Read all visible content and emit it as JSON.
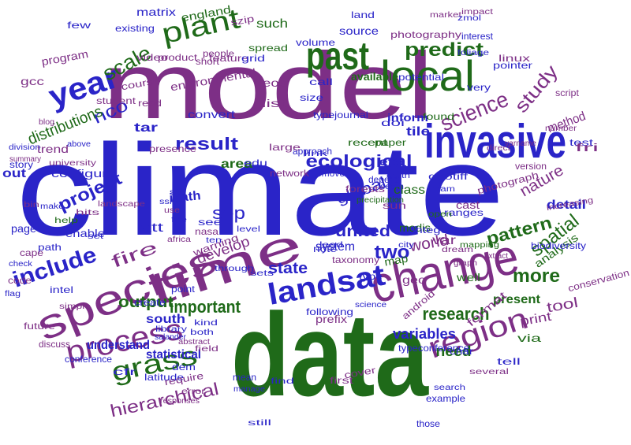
{
  "colors": {
    "blue": "#2a24c8",
    "purple": "#7d2f86",
    "green": "#1f6a19"
  },
  "words": [
    {
      "text": "climate",
      "color": "blue",
      "weight": "light"
    },
    {
      "text": "data",
      "color": "green",
      "weight": "bold"
    },
    {
      "text": "model",
      "color": "purple",
      "weight": "light"
    },
    {
      "text": "invasive",
      "color": "blue",
      "weight": "bold"
    },
    {
      "text": "species",
      "color": "purple",
      "weight": "light"
    },
    {
      "text": "time",
      "color": "purple",
      "weight": "light"
    },
    {
      "text": "change",
      "color": "purple",
      "weight": "light"
    },
    {
      "text": "local",
      "color": "green",
      "weight": "light"
    },
    {
      "text": "past",
      "color": "green",
      "weight": "bold"
    },
    {
      "text": "year",
      "color": "blue",
      "weight": "bold"
    },
    {
      "text": "plant",
      "color": "green",
      "weight": "light"
    },
    {
      "text": "landsat",
      "color": "blue",
      "weight": "bold"
    },
    {
      "text": "process",
      "color": "purple",
      "weight": "light"
    },
    {
      "text": "region",
      "color": "purple",
      "weight": "light"
    },
    {
      "text": "grass",
      "color": "green",
      "weight": "light"
    },
    {
      "text": "ecological",
      "color": "blue",
      "weight": "bold"
    },
    {
      "text": "result",
      "color": "blue",
      "weight": "bold"
    },
    {
      "text": "include",
      "color": "blue",
      "weight": "bold"
    },
    {
      "text": "science",
      "color": "purple",
      "weight": "light"
    },
    {
      "text": "predict",
      "color": "green",
      "weight": "bold"
    },
    {
      "text": "scale",
      "color": "green",
      "weight": "light"
    },
    {
      "text": "nco",
      "color": "blue",
      "weight": "light"
    },
    {
      "text": "study",
      "color": "purple",
      "weight": "light"
    },
    {
      "text": "project",
      "color": "blue",
      "weight": "bold"
    },
    {
      "text": "distributions",
      "color": "green",
      "weight": "light"
    },
    {
      "text": "spatial",
      "color": "green",
      "weight": "light"
    },
    {
      "text": "pattern",
      "color": "green",
      "weight": "bold"
    },
    {
      "text": "more",
      "color": "green",
      "weight": "bold"
    },
    {
      "text": "research",
      "color": "green",
      "weight": "bold"
    },
    {
      "text": "output",
      "color": "green",
      "weight": "bold"
    },
    {
      "text": "important",
      "color": "green",
      "weight": "bold"
    },
    {
      "text": "state",
      "color": "blue",
      "weight": "bold"
    },
    {
      "text": "two",
      "color": "blue",
      "weight": "bold"
    },
    {
      "text": "world",
      "color": "purple",
      "weight": "light"
    },
    {
      "text": "global",
      "color": "blue",
      "weight": "light"
    },
    {
      "text": "united",
      "color": "blue",
      "weight": "bold"
    },
    {
      "text": "fire",
      "color": "purple",
      "weight": "light"
    },
    {
      "text": "develop",
      "color": "purple",
      "weight": "light"
    },
    {
      "text": "statistical",
      "color": "blue",
      "weight": "bold"
    },
    {
      "text": "hierarchical",
      "color": "purple",
      "weight": "light"
    },
    {
      "text": "south",
      "color": "blue",
      "weight": "bold"
    },
    {
      "text": "understand",
      "color": "blue",
      "weight": "bold"
    },
    {
      "text": "variables",
      "color": "blue",
      "weight": "bold"
    },
    {
      "text": "need",
      "color": "green",
      "weight": "bold"
    },
    {
      "text": "present",
      "color": "green",
      "weight": "bold"
    },
    {
      "text": "tool",
      "color": "purple",
      "weight": "light"
    },
    {
      "text": "print",
      "color": "purple",
      "weight": "light"
    },
    {
      "text": "nature",
      "color": "purple",
      "weight": "light"
    },
    {
      "text": "detail",
      "color": "blue",
      "weight": "bold"
    },
    {
      "text": "analysis",
      "color": "green",
      "weight": "light"
    },
    {
      "text": "conservation",
      "color": "purple",
      "weight": "light"
    },
    {
      "text": "system",
      "color": "blue",
      "weight": "light"
    },
    {
      "text": "sep",
      "color": "blue",
      "weight": "light"
    },
    {
      "text": "att",
      "color": "blue",
      "weight": "light"
    },
    {
      "text": "area",
      "color": "green",
      "weight": "bold"
    },
    {
      "text": "class",
      "color": "green",
      "weight": "light"
    },
    {
      "text": "configure",
      "color": "blue",
      "weight": "light"
    },
    {
      "text": "trend",
      "color": "purple",
      "weight": "light"
    },
    {
      "text": "out",
      "color": "blue",
      "weight": "bold"
    },
    {
      "text": "tar",
      "color": "blue",
      "weight": "bold"
    },
    {
      "text": "ipath",
      "color": "blue",
      "weight": "bold"
    },
    {
      "text": "page",
      "color": "blue",
      "weight": "light"
    },
    {
      "text": "enable",
      "color": "blue",
      "weight": "light"
    },
    {
      "text": "prefix",
      "color": "purple",
      "weight": "light"
    },
    {
      "text": "presence",
      "color": "purple",
      "weight": "light"
    },
    {
      "text": "convert",
      "color": "blue",
      "weight": "light"
    },
    {
      "text": "environmental",
      "color": "purple",
      "weight": "light"
    },
    {
      "text": "such",
      "color": "green",
      "weight": "light"
    },
    {
      "text": "england",
      "color": "green",
      "weight": "light"
    },
    {
      "text": "matrix",
      "color": "blue",
      "weight": "light"
    },
    {
      "text": "available",
      "color": "green",
      "weight": "bold"
    },
    {
      "text": "potential",
      "color": "blue",
      "weight": "light"
    },
    {
      "text": "pointer",
      "color": "blue",
      "weight": "light"
    },
    {
      "text": "inform",
      "color": "blue",
      "weight": "bold"
    },
    {
      "text": "tile",
      "color": "blue",
      "weight": "bold"
    },
    {
      "text": "method",
      "color": "purple",
      "weight": "light"
    },
    {
      "text": "source",
      "color": "blue",
      "weight": "light"
    },
    {
      "text": "photography",
      "color": "purple",
      "weight": "light"
    },
    {
      "text": "photograph",
      "color": "purple",
      "weight": "light"
    },
    {
      "text": "geotiff",
      "color": "blue",
      "weight": "light"
    },
    {
      "text": "cast",
      "color": "purple",
      "weight": "light"
    },
    {
      "text": "ranges",
      "color": "blue",
      "weight": "light"
    },
    {
      "text": "modis",
      "color": "green",
      "weight": "light"
    },
    {
      "text": "warning",
      "color": "purple",
      "weight": "light"
    },
    {
      "text": "nasa",
      "color": "purple",
      "weight": "light"
    },
    {
      "text": "spread",
      "color": "green",
      "weight": "light"
    },
    {
      "text": "course",
      "color": "purple",
      "weight": "light"
    },
    {
      "text": "recent",
      "color": "green",
      "weight": "light"
    },
    {
      "text": "paper",
      "color": "green",
      "weight": "light"
    },
    {
      "text": "gcc",
      "color": "purple",
      "weight": "light"
    },
    {
      "text": "program",
      "color": "purple",
      "weight": "light"
    },
    {
      "text": "product",
      "color": "purple",
      "weight": "light"
    },
    {
      "text": "video",
      "color": "purple",
      "weight": "light"
    },
    {
      "text": "eos",
      "color": "purple",
      "weight": "light"
    },
    {
      "text": "feature",
      "color": "purple",
      "weight": "light"
    },
    {
      "text": "grid",
      "color": "blue",
      "weight": "light"
    },
    {
      "text": "linux",
      "color": "purple",
      "weight": "light"
    },
    {
      "text": "interest",
      "color": "blue",
      "weight": "light"
    },
    {
      "text": "market",
      "color": "purple",
      "weight": "light"
    },
    {
      "text": "land",
      "color": "blue",
      "weight": "light"
    },
    {
      "text": "volume",
      "color": "blue",
      "weight": "light"
    },
    {
      "text": "szip",
      "color": "purple",
      "weight": "light"
    },
    {
      "text": "list",
      "color": "purple",
      "weight": "light"
    },
    {
      "text": "size",
      "color": "blue",
      "weight": "light"
    },
    {
      "text": "doi",
      "color": "blue",
      "weight": "light"
    },
    {
      "text": "typejournal",
      "color": "blue",
      "weight": "light"
    },
    {
      "text": "typeconference",
      "color": "blue",
      "weight": "light"
    },
    {
      "text": "integer",
      "color": "blue",
      "weight": "light"
    },
    {
      "text": "format",
      "color": "purple",
      "weight": "light"
    },
    {
      "text": "var",
      "color": "purple",
      "weight": "light"
    },
    {
      "text": "geo",
      "color": "purple",
      "weight": "light"
    },
    {
      "text": "android",
      "color": "purple",
      "weight": "light"
    },
    {
      "text": "map",
      "color": "green",
      "weight": "light"
    },
    {
      "text": "taxonomy",
      "color": "purple",
      "weight": "light"
    },
    {
      "text": "intel",
      "color": "blue",
      "weight": "light"
    },
    {
      "text": "path",
      "color": "blue",
      "weight": "light"
    },
    {
      "text": "note",
      "color": "blue",
      "weight": "light"
    },
    {
      "text": "create",
      "color": "blue",
      "weight": "light"
    },
    {
      "text": "point",
      "color": "blue",
      "weight": "light"
    },
    {
      "text": "see",
      "color": "blue",
      "weight": "light"
    },
    {
      "text": "cape",
      "color": "purple",
      "weight": "light"
    },
    {
      "text": "code",
      "color": "purple",
      "weight": "light"
    },
    {
      "text": "future",
      "color": "purple",
      "weight": "light"
    },
    {
      "text": "story",
      "color": "blue",
      "weight": "light"
    },
    {
      "text": "conference",
      "color": "blue",
      "weight": "light"
    },
    {
      "text": "latitude",
      "color": "blue",
      "weight": "light"
    },
    {
      "text": "require",
      "color": "purple",
      "weight": "light"
    },
    {
      "text": "following",
      "color": "blue",
      "weight": "light"
    },
    {
      "text": "cover",
      "color": "purple",
      "weight": "light"
    },
    {
      "text": "dem",
      "color": "blue",
      "weight": "light"
    },
    {
      "text": "mean",
      "color": "blue",
      "weight": "light"
    },
    {
      "text": "char",
      "color": "blue",
      "weight": "light"
    },
    {
      "text": "via",
      "color": "green",
      "weight": "light"
    },
    {
      "text": "example",
      "color": "blue",
      "weight": "light"
    },
    {
      "text": "search",
      "color": "blue",
      "weight": "light"
    },
    {
      "text": "discuss",
      "color": "purple",
      "weight": "light"
    },
    {
      "text": "tell",
      "color": "blue",
      "weight": "light"
    },
    {
      "text": "those",
      "color": "blue",
      "weight": "light"
    },
    {
      "text": "cfr",
      "color": "blue",
      "weight": "light"
    },
    {
      "text": "biodiversity",
      "color": "blue",
      "weight": "light"
    },
    {
      "text": "test",
      "color": "blue",
      "weight": "light"
    },
    {
      "text": "fri",
      "color": "purple",
      "weight": "light"
    },
    {
      "text": "version",
      "color": "purple",
      "weight": "light"
    },
    {
      "text": "network",
      "color": "purple",
      "weight": "light"
    },
    {
      "text": "lead",
      "color": "blue",
      "weight": "light"
    },
    {
      "text": "remove",
      "color": "blue",
      "weight": "light"
    },
    {
      "text": "call",
      "color": "blue",
      "weight": "light"
    },
    {
      "text": "approach",
      "color": "blue",
      "weight": "light"
    },
    {
      "text": "large",
      "color": "purple",
      "weight": "light"
    },
    {
      "text": "found",
      "color": "green",
      "weight": "light"
    },
    {
      "text": "very",
      "color": "blue",
      "weight": "light"
    },
    {
      "text": "etc",
      "color": "blue",
      "weight": "bold"
    },
    {
      "text": "people",
      "color": "purple",
      "weight": "light"
    },
    {
      "text": "short",
      "color": "purple",
      "weight": "light"
    },
    {
      "text": "student",
      "color": "purple",
      "weight": "light"
    },
    {
      "text": "read",
      "color": "purple",
      "weight": "light"
    },
    {
      "text": "few",
      "color": "blue",
      "weight": "light"
    },
    {
      "text": "existing",
      "color": "blue",
      "weight": "light"
    },
    {
      "text": "university",
      "color": "purple",
      "weight": "light"
    },
    {
      "text": "landscape",
      "color": "purple",
      "weight": "light"
    },
    {
      "text": "hits",
      "color": "purple",
      "weight": "light"
    },
    {
      "text": "science",
      "color": "blue",
      "weight": "light"
    },
    {
      "text": "impact",
      "color": "purple",
      "weight": "light"
    },
    {
      "text": "zmol",
      "color": "blue",
      "weight": "light"
    },
    {
      "text": "foliage",
      "color": "blue",
      "weight": "light"
    },
    {
      "text": "increasing",
      "color": "purple",
      "weight": "light"
    },
    {
      "text": "well",
      "color": "green",
      "weight": "light"
    },
    {
      "text": "type",
      "color": "blue",
      "weight": "light"
    },
    {
      "text": "several",
      "color": "purple",
      "weight": "light"
    },
    {
      "text": "through",
      "color": "blue",
      "weight": "light"
    },
    {
      "text": "sets",
      "color": "blue",
      "weight": "light"
    },
    {
      "text": "edu",
      "color": "blue",
      "weight": "light"
    },
    {
      "text": "forests",
      "color": "purple",
      "weight": "light"
    },
    {
      "text": "depend",
      "color": "blue",
      "weight": "light"
    },
    {
      "text": "link",
      "color": "blue",
      "weight": "light"
    },
    {
      "text": "seem",
      "color": "blue",
      "weight": "light"
    },
    {
      "text": "sun",
      "color": "purple",
      "weight": "light"
    },
    {
      "text": "precipitation",
      "color": "green",
      "weight": "light"
    },
    {
      "text": "earth",
      "color": "blue",
      "weight": "light"
    },
    {
      "text": "both",
      "color": "blue",
      "weight": "light"
    },
    {
      "text": "kind",
      "color": "blue",
      "weight": "light"
    },
    {
      "text": "find",
      "color": "blue",
      "weight": "light"
    },
    {
      "text": "first",
      "color": "purple",
      "weight": "light"
    },
    {
      "text": "still",
      "color": "blue",
      "weight": "light"
    },
    {
      "text": "library",
      "color": "blue",
      "weight": "light"
    },
    {
      "text": "salander",
      "color": "blue",
      "weight": "light"
    },
    {
      "text": "abstract",
      "color": "purple",
      "weight": "light"
    },
    {
      "text": "field",
      "color": "purple",
      "weight": "light"
    },
    {
      "text": "mapping",
      "color": "green",
      "weight": "light"
    },
    {
      "text": "dream",
      "color": "purple",
      "weight": "light"
    },
    {
      "text": "level",
      "color": "blue",
      "weight": "light"
    },
    {
      "text": "ten",
      "color": "blue",
      "weight": "light"
    },
    {
      "text": "africa",
      "color": "purple",
      "weight": "light"
    },
    {
      "text": "fire",
      "color": "blue",
      "weight": "light"
    },
    {
      "text": "site",
      "color": "blue",
      "weight": "light"
    },
    {
      "text": "ssh",
      "color": "blue",
      "weight": "light"
    },
    {
      "text": "use",
      "color": "purple",
      "weight": "light"
    },
    {
      "text": "bin",
      "color": "purple",
      "weight": "light"
    },
    {
      "text": "make",
      "color": "blue",
      "weight": "light"
    },
    {
      "text": "help",
      "color": "green",
      "weight": "light"
    },
    {
      "text": "script",
      "color": "purple",
      "weight": "light"
    },
    {
      "text": "varname",
      "color": "purple",
      "weight": "light"
    },
    {
      "text": "number",
      "color": "purple",
      "weight": "light"
    },
    {
      "text": "direct",
      "color": "purple",
      "weight": "light"
    },
    {
      "text": "team",
      "color": "blue",
      "weight": "light"
    },
    {
      "text": "open",
      "color": "green",
      "weight": "light"
    },
    {
      "text": "extract",
      "color": "purple",
      "weight": "light"
    },
    {
      "text": "responses",
      "color": "purple",
      "weight": "light"
    },
    {
      "text": "error",
      "color": "purple",
      "weight": "light"
    },
    {
      "text": "manage",
      "color": "blue",
      "weight": "light"
    },
    {
      "text": "graph",
      "color": "purple",
      "weight": "light"
    },
    {
      "text": "city",
      "color": "blue",
      "weight": "light"
    },
    {
      "text": "check",
      "color": "blue",
      "weight": "light"
    },
    {
      "text": "simple",
      "color": "purple",
      "weight": "light"
    },
    {
      "text": "flag",
      "color": "blue",
      "weight": "light"
    },
    {
      "text": "set",
      "color": "blue",
      "weight": "light"
    },
    {
      "text": "division",
      "color": "blue",
      "weight": "light"
    },
    {
      "text": "summary",
      "color": "purple",
      "weight": "light"
    },
    {
      "text": "blog",
      "color": "purple",
      "weight": "light"
    },
    {
      "text": "above",
      "color": "blue",
      "weight": "light"
    }
  ]
}
